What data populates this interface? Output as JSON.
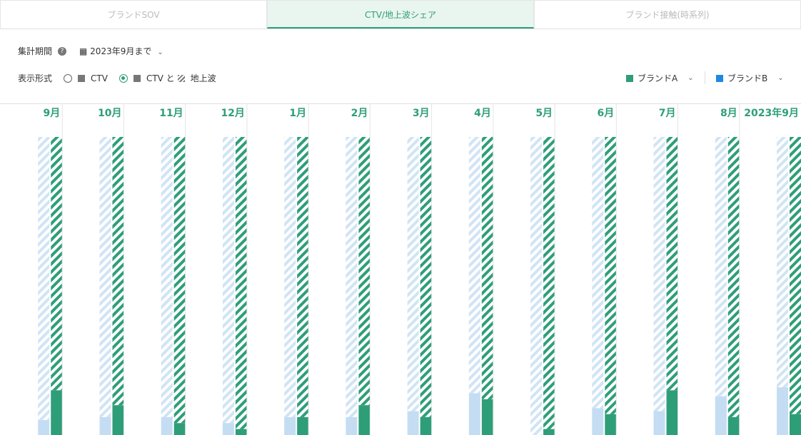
{
  "tabs": [
    "ブランドSOV",
    "CTV/地上波シェア",
    "ブランド接触(時系列)"
  ],
  "active_tab": 1,
  "filters": {
    "period_label": "集計期間",
    "period_value": "2023年9月まで",
    "format_label": "表示形式",
    "format_options": [
      "CTV",
      "CTV と",
      "地上波"
    ],
    "format_selected": 1
  },
  "chart_data": {
    "type": "bar",
    "stacked": true,
    "categories": [
      "9月",
      "10月",
      "11月",
      "12月",
      "1月",
      "2月",
      "3月",
      "4月",
      "5月",
      "6月",
      "7月",
      "8月",
      "2023年9月"
    ],
    "ylim": [
      0,
      100
    ],
    "series": [
      {
        "name": "ブランドA",
        "legend_color": "#2e9e78",
        "color": "#2e9e78",
        "ctv": [
          15,
          10,
          4,
          2,
          6,
          10,
          6,
          12,
          2,
          7,
          15,
          6,
          7
        ],
        "terrestrial": [
          85,
          90,
          96,
          98,
          94,
          90,
          94,
          88,
          98,
          93,
          85,
          94,
          93
        ]
      },
      {
        "name": "ブランドB",
        "legend_color": "#1e88e5",
        "color": "#c4ddf3",
        "ctv": [
          5,
          6,
          6,
          4,
          6,
          6,
          8,
          14,
          0,
          9,
          8,
          13,
          16
        ],
        "terrestrial": [
          95,
          94,
          94,
          96,
          94,
          94,
          92,
          86,
          100,
          91,
          92,
          87,
          84
        ]
      }
    ]
  }
}
